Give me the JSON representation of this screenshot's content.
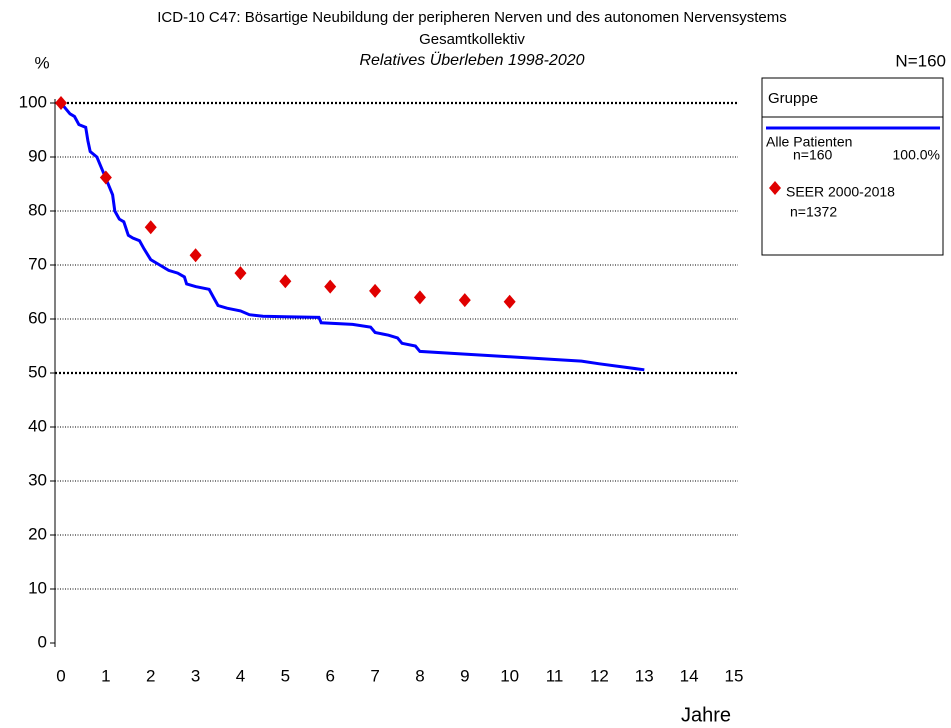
{
  "chart_data": {
    "type": "line",
    "title": "ICD-10 C47: Bösartige Neubildung der peripheren Nerven und des autonomen Nervensystems",
    "subtitle": "Gesamtkollektiv",
    "subtitle2": "Relatives Überleben 1998-2020",
    "y_label": "%",
    "n_label": "N=160",
    "x_label": "Jahre",
    "legend_title": "Gruppe",
    "xlim": [
      0,
      15
    ],
    "xticks": [
      0,
      1,
      2,
      3,
      4,
      5,
      6,
      7,
      8,
      9,
      10,
      11,
      12,
      13,
      14,
      15
    ],
    "ylim": [
      0,
      100
    ],
    "yticks": [
      0,
      10,
      20,
      30,
      40,
      50,
      60,
      70,
      80,
      90,
      100
    ],
    "grid": true,
    "bold_grid": [
      50,
      100
    ],
    "series": [
      {
        "name": "Alle Patienten",
        "type": "line",
        "color": "#0000ff",
        "n_label": "n=160",
        "pct_label": "100.0%",
        "x": [
          0,
          0.1,
          0.2,
          0.3,
          0.4,
          0.55,
          0.6,
          0.65,
          0.8,
          0.9,
          1.0,
          1.1,
          1.15,
          1.2,
          1.3,
          1.4,
          1.5,
          1.6,
          1.75,
          1.85,
          2.0,
          2.2,
          2.4,
          2.6,
          2.75,
          2.8,
          3.0,
          3.3,
          3.4,
          3.5,
          3.7,
          4.0,
          4.2,
          4.5,
          5.0,
          5.75,
          5.8,
          6.5,
          6.9,
          7.0,
          7.3,
          7.5,
          7.6,
          7.9,
          8.0,
          9,
          10,
          11,
          11.6,
          12,
          13
        ],
        "values": [
          100,
          99,
          98,
          97.5,
          96,
          95.5,
          93,
          91,
          90,
          88,
          86,
          84,
          83,
          80,
          78.5,
          78,
          75.5,
          75,
          74.5,
          73,
          71,
          70,
          69,
          68.5,
          67.8,
          66.5,
          66,
          65.5,
          64,
          62.5,
          62,
          61.5,
          60.8,
          60.5,
          60.4,
          60.3,
          59.3,
          59,
          58.5,
          57.5,
          57,
          56.5,
          55.5,
          55,
          54,
          53.5,
          53,
          52.5,
          52.2,
          51.7,
          50.6
        ]
      },
      {
        "name": "SEER 2000-2018",
        "type": "scatter",
        "color": "#e00000",
        "n_label": "n=1372",
        "x": [
          0,
          1,
          2,
          3,
          4,
          5,
          6,
          7,
          8,
          9,
          10
        ],
        "values": [
          100,
          86.2,
          77,
          71.8,
          68.5,
          67,
          66,
          65.2,
          64,
          63.5,
          63.2
        ]
      }
    ]
  }
}
